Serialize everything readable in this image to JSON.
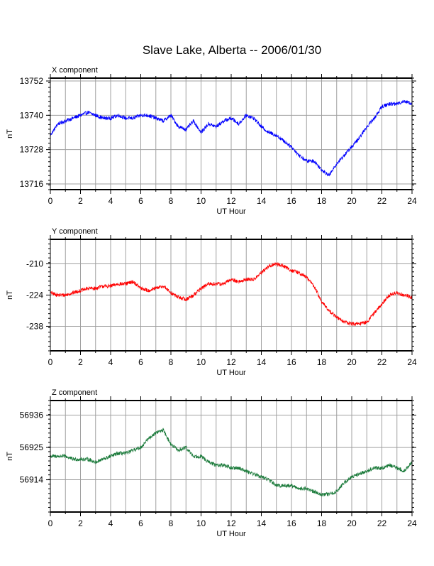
{
  "page_title": "Slave Lake, Alberta -- 2006/01/30",
  "chart_data": [
    {
      "type": "line",
      "title": "X component",
      "xlabel": "UT Hour",
      "ylabel": "nT",
      "xlim": [
        0,
        24
      ],
      "xticks": [
        0,
        2,
        4,
        6,
        8,
        10,
        12,
        14,
        16,
        18,
        20,
        22,
        24
      ],
      "ylim": [
        13714,
        13753
      ],
      "yticks": [
        13716,
        13728,
        13740,
        13752
      ],
      "grid": true,
      "color": "#0000ff",
      "x": [
        0,
        0.5,
        1,
        1.5,
        2,
        2.5,
        3,
        3.5,
        4,
        4.5,
        5,
        5.5,
        6,
        6.5,
        7,
        7.5,
        8,
        8.5,
        9,
        9.5,
        10,
        10.5,
        11,
        11.5,
        12,
        12.5,
        13,
        13.5,
        14,
        14.5,
        15,
        15.5,
        16,
        16.5,
        17,
        17.5,
        18,
        18.5,
        19,
        19.5,
        20,
        20.5,
        21,
        21.5,
        22,
        22.5,
        23,
        23.5,
        24
      ],
      "y": [
        13733,
        13737,
        13738,
        13739,
        13740,
        13741,
        13740,
        13739,
        13739,
        13740,
        13739,
        13739,
        13740,
        13740,
        13739,
        13738,
        13740,
        13736,
        13735,
        13738,
        13734,
        13737,
        13736,
        13738,
        13739,
        13737,
        13740,
        13739,
        13736,
        13734,
        13733,
        13731,
        13729,
        13726,
        13724,
        13724,
        13721,
        13719,
        13723,
        13726,
        13729,
        13732,
        13736,
        13739,
        13743,
        13744,
        13744,
        13745,
        13744
      ]
    },
    {
      "type": "line",
      "title": "Y component",
      "xlabel": "UT Hour",
      "ylabel": "nT",
      "xlim": [
        0,
        24
      ],
      "xticks": [
        0,
        2,
        4,
        6,
        8,
        10,
        12,
        14,
        16,
        18,
        20,
        22,
        24
      ],
      "ylim": [
        -249,
        -199
      ],
      "yticks": [
        -210,
        -224,
        -238
      ],
      "grid": true,
      "color": "#ff0000",
      "x": [
        0,
        0.5,
        1,
        1.5,
        2,
        2.5,
        3,
        3.5,
        4,
        4.5,
        5,
        5.5,
        6,
        6.5,
        7,
        7.5,
        8,
        8.5,
        9,
        9.5,
        10,
        10.5,
        11,
        11.5,
        12,
        12.5,
        13,
        13.5,
        14,
        14.5,
        15,
        15.5,
        16,
        16.5,
        17,
        17.5,
        18,
        18.5,
        19,
        19.5,
        20,
        20.5,
        21,
        21.5,
        22,
        22.5,
        23,
        23.5,
        24
      ],
      "y": [
        -223,
        -224,
        -224,
        -223,
        -222,
        -221,
        -221,
        -220,
        -220,
        -219,
        -219,
        -218,
        -221,
        -222,
        -221,
        -220,
        -223,
        -225,
        -226,
        -224,
        -221,
        -219,
        -219,
        -219,
        -217,
        -218,
        -217,
        -217,
        -214,
        -211,
        -210,
        -211,
        -213,
        -214,
        -216,
        -220,
        -227,
        -231,
        -234,
        -236,
        -237,
        -237,
        -236,
        -232,
        -228,
        -224,
        -223,
        -224,
        -225
      ]
    },
    {
      "type": "line",
      "title": "Z component",
      "xlabel": "UT Hour",
      "ylabel": "nT",
      "xlim": [
        0,
        24
      ],
      "xticks": [
        0,
        2,
        4,
        6,
        8,
        10,
        12,
        14,
        16,
        18,
        20,
        22,
        24
      ],
      "ylim": [
        56903,
        56941
      ],
      "yticks": [
        56914,
        56925,
        56936
      ],
      "grid": true,
      "color": "#1a7a3a",
      "x": [
        0,
        0.5,
        1,
        1.5,
        2,
        2.5,
        3,
        3.5,
        4,
        4.5,
        5,
        5.5,
        6,
        6.5,
        7,
        7.5,
        8,
        8.5,
        9,
        9.5,
        10,
        10.5,
        11,
        11.5,
        12,
        12.5,
        13,
        13.5,
        14,
        14.5,
        15,
        15.5,
        16,
        16.5,
        17,
        17.5,
        18,
        18.5,
        19,
        19.5,
        20,
        20.5,
        21,
        21.5,
        22,
        22.5,
        23,
        23.5,
        24
      ],
      "y": [
        56922,
        56922,
        56922,
        56921,
        56921,
        56921,
        56920,
        56921,
        56922,
        56923,
        56923,
        56924,
        56925,
        56928,
        56930,
        56931,
        56926,
        56924,
        56925,
        56922,
        56922,
        56920,
        56919,
        56919,
        56918,
        56918,
        56917,
        56916,
        56915,
        56914,
        56912,
        56912,
        56912,
        56911,
        56911,
        56910,
        56909,
        56909,
        56910,
        56913,
        56915,
        56916,
        56917,
        56918,
        56918,
        56919,
        56918,
        56917,
        56920
      ]
    }
  ]
}
